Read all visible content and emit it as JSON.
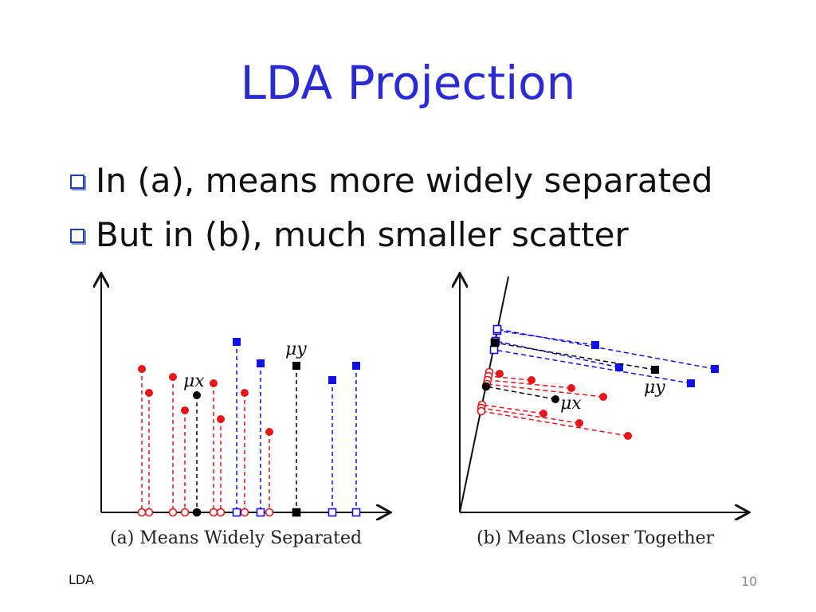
{
  "slide": {
    "title": "LDA Projection",
    "bullets": [
      "In (a), means more widely separated",
      "But in (b), much smaller scatter"
    ],
    "footer_left": "LDA",
    "page_number": "10"
  },
  "figure_a": {
    "caption": "(a) Means Widely Separated",
    "mu_x_label": "μx",
    "mu_y_label": "μy"
  },
  "figure_b": {
    "caption": "(b) Means Closer Together",
    "mu_x_label": "μx",
    "mu_y_label": "μy"
  },
  "colors": {
    "red": "#e8151b",
    "blue": "#1212e6",
    "black": "#000000",
    "title": "#2a2ad6"
  }
}
